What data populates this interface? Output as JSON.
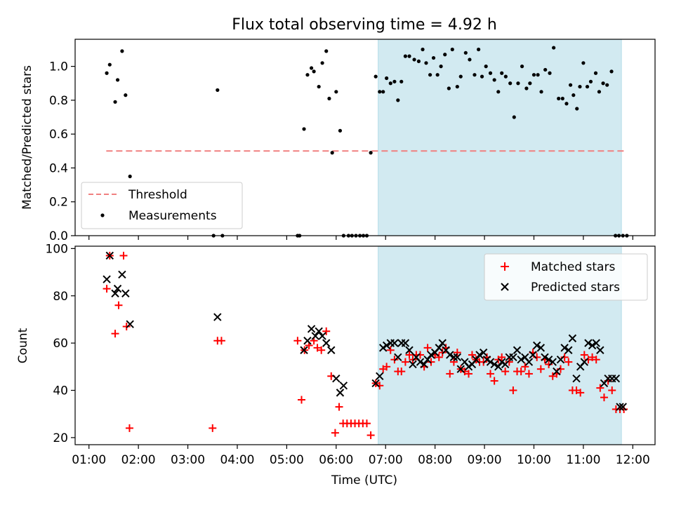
{
  "figure": {
    "title": "Flux total observing time = 4.92 h",
    "xlabel": "Time (UTC)",
    "x_tick_labels": [
      "01:00",
      "02:00",
      "03:00",
      "04:00",
      "05:00",
      "06:00",
      "07:00",
      "08:00",
      "09:00",
      "10:00",
      "11:00",
      "12:00"
    ],
    "x_ticks_hours": [
      1,
      2,
      3,
      4,
      5,
      6,
      7,
      8,
      9,
      10,
      11,
      12
    ],
    "xlim_hours": [
      0.72,
      12.45
    ],
    "shaded_window_hours": [
      6.85,
      11.77
    ],
    "shade_color": "#add8e6"
  },
  "chart_data": [
    {
      "type": "scatter",
      "ylabel": "Matched/Predicted stars",
      "ylim": [
        0,
        1.16
      ],
      "y_ticks": [
        0.0,
        0.2,
        0.4,
        0.6,
        0.8,
        1.0
      ],
      "y_tick_labels": [
        "0.0",
        "0.2",
        "0.4",
        "0.6",
        "0.8",
        "1.0"
      ],
      "legend_position": "lower-left",
      "threshold": {
        "name": "Threshold",
        "value": 0.5,
        "x_range": [
          1.35,
          11.85
        ],
        "color": "#f08080"
      },
      "series": [
        {
          "name": "Measurements",
          "color": "#000000",
          "x": [
            1.36,
            1.42,
            1.53,
            1.58,
            1.67,
            1.74,
            1.83,
            3.52,
            3.6,
            3.7,
            5.22,
            5.26,
            5.35,
            5.42,
            5.5,
            5.55,
            5.65,
            5.72,
            5.8,
            5.86,
            5.92,
            6.0,
            6.08,
            6.15,
            6.25,
            6.32,
            6.4,
            6.48,
            6.55,
            6.62,
            6.7,
            6.8,
            6.88,
            6.95,
            7.02,
            7.1,
            7.18,
            7.25,
            7.32,
            7.4,
            7.48,
            7.58,
            7.67,
            7.75,
            7.82,
            7.9,
            7.97,
            8.05,
            8.12,
            8.2,
            8.28,
            8.35,
            8.45,
            8.52,
            8.62,
            8.7,
            8.8,
            8.88,
            8.95,
            9.03,
            9.12,
            9.2,
            9.28,
            9.35,
            9.43,
            9.52,
            9.6,
            9.68,
            9.76,
            9.85,
            9.92,
            10.0,
            10.08,
            10.15,
            10.23,
            10.32,
            10.4,
            10.5,
            10.58,
            10.66,
            10.74,
            10.8,
            10.87,
            10.93,
            11.0,
            11.08,
            11.15,
            11.25,
            11.32,
            11.4,
            11.48,
            11.57,
            11.65,
            11.72,
            11.8,
            11.88
          ],
          "y": [
            0.96,
            1.01,
            0.79,
            0.92,
            1.09,
            0.83,
            0.35,
            0.0,
            0.86,
            0.0,
            0.0,
            0.0,
            0.63,
            0.95,
            0.99,
            0.97,
            0.88,
            1.02,
            1.09,
            0.81,
            0.49,
            0.85,
            0.62,
            0.0,
            0.0,
            0.0,
            0.0,
            0.0,
            0.0,
            0.0,
            0.49,
            0.94,
            0.85,
            0.85,
            0.93,
            0.9,
            0.91,
            0.8,
            0.91,
            1.06,
            1.06,
            1.04,
            1.03,
            1.1,
            1.02,
            0.95,
            1.05,
            0.95,
            1.0,
            1.07,
            0.87,
            1.1,
            0.88,
            0.94,
            1.08,
            1.04,
            0.95,
            1.1,
            0.94,
            1.0,
            0.96,
            0.92,
            0.85,
            0.96,
            0.94,
            0.9,
            0.7,
            0.9,
            1.0,
            0.87,
            0.9,
            0.95,
            0.95,
            0.85,
            0.98,
            0.96,
            1.11,
            0.81,
            0.81,
            0.78,
            0.89,
            0.83,
            0.75,
            0.88,
            1.02,
            0.88,
            0.91,
            0.96,
            0.85,
            0.9,
            0.89,
            0.97,
            0.0,
            0.0,
            0.0,
            0.0
          ]
        }
      ]
    },
    {
      "type": "scatter",
      "ylabel": "Count",
      "ylim": [
        17,
        101
      ],
      "y_ticks": [
        20,
        40,
        60,
        80,
        100
      ],
      "y_tick_labels": [
        "20",
        "40",
        "60",
        "80",
        "100"
      ],
      "legend_position": "upper-right",
      "series": [
        {
          "name": "Matched stars",
          "marker": "+",
          "color": "#ff0000",
          "x": [
            1.36,
            1.42,
            1.53,
            1.6,
            1.7,
            1.76,
            1.82,
            3.5,
            3.6,
            3.68,
            5.22,
            5.3,
            5.36,
            5.45,
            5.55,
            5.62,
            5.7,
            5.8,
            5.9,
            5.98,
            6.06,
            6.14,
            6.22,
            6.3,
            6.38,
            6.46,
            6.54,
            6.62,
            6.7,
            6.8,
            6.88,
            6.95,
            7.02,
            7.1,
            7.18,
            7.25,
            7.32,
            7.4,
            7.48,
            7.55,
            7.62,
            7.7,
            7.78,
            7.85,
            7.92,
            8.0,
            8.08,
            8.15,
            8.22,
            8.3,
            8.38,
            8.45,
            8.52,
            8.6,
            8.68,
            8.75,
            8.83,
            8.9,
            8.98,
            9.05,
            9.12,
            9.2,
            9.28,
            9.35,
            9.42,
            9.5,
            9.58,
            9.66,
            9.74,
            9.82,
            9.9,
            9.98,
            10.06,
            10.14,
            10.22,
            10.3,
            10.38,
            10.46,
            10.54,
            10.62,
            10.7,
            10.78,
            10.86,
            10.94,
            11.02,
            11.1,
            11.18,
            11.26,
            11.34,
            11.42,
            11.5,
            11.58,
            11.66,
            11.74,
            11.82
          ],
          "y": [
            83,
            97,
            64,
            76,
            97,
            67,
            24,
            24,
            61,
            61,
            61,
            36,
            57,
            59,
            61,
            58,
            57,
            65,
            46,
            22,
            33,
            26,
            26,
            26,
            26,
            26,
            26,
            26,
            21,
            43,
            42,
            49,
            50,
            57,
            53,
            48,
            48,
            52,
            55,
            53,
            55,
            55,
            50,
            58,
            52,
            55,
            54,
            56,
            58,
            47,
            52,
            56,
            49,
            48,
            47,
            55,
            53,
            52,
            52,
            54,
            47,
            44,
            53,
            54,
            48,
            52,
            40,
            48,
            48,
            50,
            47,
            56,
            54,
            49,
            53,
            51,
            46,
            47,
            49,
            54,
            52,
            40,
            40,
            39,
            55,
            53,
            54,
            53,
            41,
            37,
            44,
            40,
            32,
            32,
            32
          ]
        },
        {
          "name": "Predicted stars",
          "marker": "x",
          "color": "#000000",
          "x": [
            1.36,
            1.42,
            1.53,
            1.58,
            1.67,
            1.74,
            1.83,
            3.6,
            5.35,
            5.42,
            5.5,
            5.58,
            5.65,
            5.72,
            5.8,
            5.9,
            6.0,
            6.08,
            6.15,
            6.8,
            6.88,
            6.95,
            7.02,
            7.1,
            7.18,
            7.25,
            7.32,
            7.4,
            7.48,
            7.55,
            7.62,
            7.7,
            7.78,
            7.85,
            7.92,
            8.0,
            8.08,
            8.15,
            8.22,
            8.3,
            8.38,
            8.45,
            8.52,
            8.6,
            8.68,
            8.75,
            8.83,
            8.9,
            8.98,
            9.05,
            9.12,
            9.2,
            9.28,
            9.35,
            9.42,
            9.5,
            9.58,
            9.66,
            9.74,
            9.82,
            9.9,
            9.98,
            10.06,
            10.14,
            10.22,
            10.3,
            10.38,
            10.46,
            10.54,
            10.62,
            10.7,
            10.78,
            10.86,
            10.94,
            11.02,
            11.1,
            11.18,
            11.26,
            11.34,
            11.42,
            11.5,
            11.58,
            11.66,
            11.74,
            11.8
          ],
          "y": [
            87,
            97,
            81,
            83,
            89,
            81,
            68,
            71,
            57,
            61,
            66,
            63,
            65,
            63,
            60,
            57,
            45,
            39,
            42,
            43,
            46,
            58,
            59,
            60,
            60,
            54,
            60,
            60,
            57,
            51,
            54,
            52,
            51,
            53,
            55,
            56,
            58,
            60,
            57,
            55,
            54,
            54,
            49,
            52,
            50,
            51,
            53,
            55,
            56,
            53,
            52,
            51,
            50,
            52,
            51,
            54,
            54,
            57,
            53,
            54,
            52,
            55,
            59,
            58,
            54,
            53,
            52,
            48,
            53,
            58,
            57,
            62,
            45,
            50,
            52,
            60,
            59,
            60,
            57,
            43,
            45,
            45,
            45,
            33,
            33
          ]
        }
      ]
    }
  ]
}
